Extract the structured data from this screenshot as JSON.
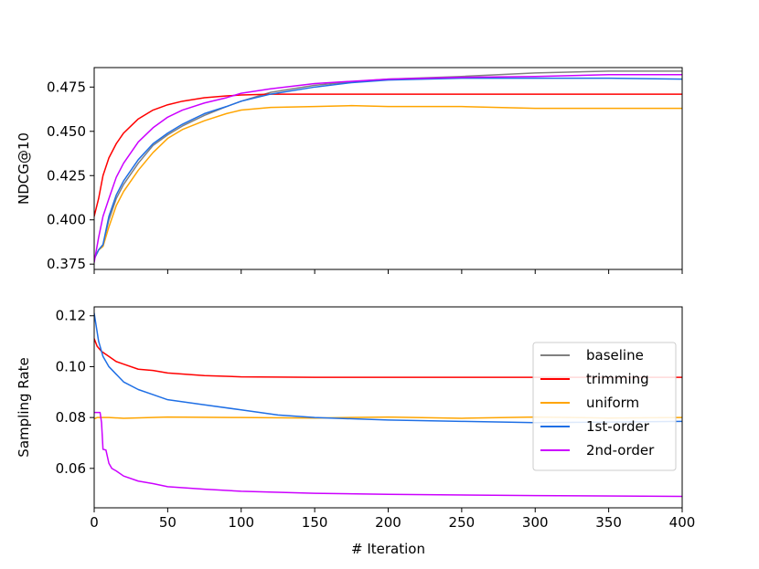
{
  "chart_data": [
    {
      "type": "line",
      "xlabel": "",
      "ylabel": "NDCG@10",
      "xlim": [
        0,
        400
      ],
      "ylim": [
        0.372,
        0.486
      ],
      "x_ticks": [
        0,
        50,
        100,
        150,
        200,
        250,
        300,
        350,
        400
      ],
      "show_x_tick_labels": false,
      "y_ticks": [
        0.375,
        0.4,
        0.425,
        0.45,
        0.475
      ],
      "y_tick_labels": [
        "0.375",
        "0.400",
        "0.425",
        "0.450",
        "0.475"
      ],
      "grid": false,
      "series": [
        {
          "name": "baseline",
          "color": "#808080",
          "x": [
            0,
            3,
            6,
            10,
            15,
            20,
            30,
            40,
            50,
            60,
            75,
            90,
            100,
            120,
            150,
            175,
            200,
            250,
            300,
            350,
            400
          ],
          "y": [
            0.378,
            0.383,
            0.386,
            0.4,
            0.412,
            0.42,
            0.432,
            0.442,
            0.448,
            0.453,
            0.459,
            0.464,
            0.467,
            0.472,
            0.476,
            0.478,
            0.4795,
            0.481,
            0.483,
            0.484,
            0.484
          ]
        },
        {
          "name": "trimming",
          "color": "#ff0000",
          "x": [
            0,
            3,
            6,
            10,
            15,
            20,
            25,
            30,
            40,
            50,
            60,
            75,
            90,
            100,
            120,
            150,
            200,
            250,
            300,
            350,
            400
          ],
          "y": [
            0.402,
            0.412,
            0.425,
            0.435,
            0.443,
            0.449,
            0.453,
            0.457,
            0.462,
            0.465,
            0.467,
            0.469,
            0.47,
            0.4705,
            0.471,
            0.471,
            0.471,
            0.471,
            0.471,
            0.471,
            0.471
          ]
        },
        {
          "name": "uniform",
          "color": "#ffa500",
          "x": [
            0,
            3,
            6,
            10,
            15,
            20,
            30,
            40,
            50,
            60,
            75,
            90,
            100,
            120,
            150,
            175,
            200,
            250,
            300,
            350,
            400
          ],
          "y": [
            0.378,
            0.383,
            0.385,
            0.396,
            0.408,
            0.416,
            0.428,
            0.438,
            0.446,
            0.451,
            0.456,
            0.46,
            0.462,
            0.4635,
            0.464,
            0.4645,
            0.464,
            0.464,
            0.463,
            0.463,
            0.463
          ]
        },
        {
          "name": "1st-order",
          "color": "#1f6fe5",
          "x": [
            0,
            3,
            6,
            10,
            15,
            20,
            30,
            40,
            50,
            60,
            75,
            90,
            100,
            120,
            150,
            175,
            200,
            250,
            300,
            350,
            400
          ],
          "y": [
            0.378,
            0.383,
            0.386,
            0.402,
            0.414,
            0.422,
            0.434,
            0.443,
            0.449,
            0.454,
            0.46,
            0.464,
            0.467,
            0.471,
            0.475,
            0.4775,
            0.479,
            0.48,
            0.48,
            0.48,
            0.4795
          ]
        },
        {
          "name": "2nd-order",
          "color": "#cc00ff",
          "x": [
            0,
            3,
            6,
            10,
            15,
            20,
            25,
            30,
            40,
            50,
            60,
            75,
            90,
            100,
            120,
            150,
            200,
            250,
            300,
            350,
            400
          ],
          "y": [
            0.376,
            0.39,
            0.402,
            0.412,
            0.424,
            0.432,
            0.438,
            0.444,
            0.452,
            0.458,
            0.462,
            0.466,
            0.469,
            0.4715,
            0.474,
            0.477,
            0.4795,
            0.4805,
            0.481,
            0.482,
            0.482
          ]
        }
      ]
    },
    {
      "type": "line",
      "xlabel": "# Iteration",
      "ylabel": "Sampling Rate",
      "xlim": [
        0,
        400
      ],
      "ylim": [
        0.0445,
        0.1235
      ],
      "x_ticks": [
        0,
        50,
        100,
        150,
        200,
        250,
        300,
        350,
        400
      ],
      "x_tick_labels": [
        "0",
        "50",
        "100",
        "150",
        "200",
        "250",
        "300",
        "350",
        "400"
      ],
      "y_ticks": [
        0.06,
        0.08,
        0.1,
        0.12
      ],
      "y_tick_labels": [
        "0.06",
        "0.08",
        "0.10",
        "0.12"
      ],
      "grid": false,
      "legend_position": "right",
      "series": [
        {
          "name": "baseline",
          "color": "#808080",
          "x": [],
          "y": []
        },
        {
          "name": "trimming",
          "color": "#ff0000",
          "x": [
            0,
            2,
            5,
            10,
            15,
            20,
            30,
            40,
            50,
            75,
            100,
            150,
            200,
            300,
            400
          ],
          "y": [
            0.111,
            0.108,
            0.106,
            0.104,
            0.102,
            0.101,
            0.099,
            0.0985,
            0.0975,
            0.0965,
            0.096,
            0.0958,
            0.0958,
            0.0958,
            0.0958
          ]
        },
        {
          "name": "uniform",
          "color": "#ffa500",
          "x": [
            0,
            2,
            5,
            10,
            20,
            50,
            100,
            150,
            200,
            250,
            300,
            350,
            400
          ],
          "y": [
            0.0795,
            0.08,
            0.08,
            0.08,
            0.0797,
            0.0802,
            0.08,
            0.0798,
            0.0802,
            0.0797,
            0.0802,
            0.0798,
            0.08
          ]
        },
        {
          "name": "1st-order",
          "color": "#1f6fe5",
          "x": [
            0,
            3,
            6,
            10,
            15,
            20,
            30,
            40,
            50,
            75,
            100,
            125,
            150,
            200,
            250,
            300,
            350,
            400
          ],
          "y": [
            0.121,
            0.11,
            0.104,
            0.1,
            0.097,
            0.094,
            0.091,
            0.089,
            0.087,
            0.085,
            0.083,
            0.081,
            0.08,
            0.079,
            0.0785,
            0.078,
            0.0782,
            0.0785
          ]
        },
        {
          "name": "2nd-order",
          "color": "#cc00ff",
          "x": [
            0,
            2,
            4,
            5,
            6,
            8,
            10,
            12,
            15,
            20,
            30,
            40,
            50,
            75,
            100,
            150,
            200,
            300,
            400
          ],
          "y": [
            0.082,
            0.082,
            0.082,
            0.078,
            0.0675,
            0.0672,
            0.062,
            0.06,
            0.059,
            0.057,
            0.055,
            0.054,
            0.0528,
            0.0518,
            0.051,
            0.0502,
            0.0498,
            0.0493,
            0.049
          ]
        }
      ]
    }
  ]
}
